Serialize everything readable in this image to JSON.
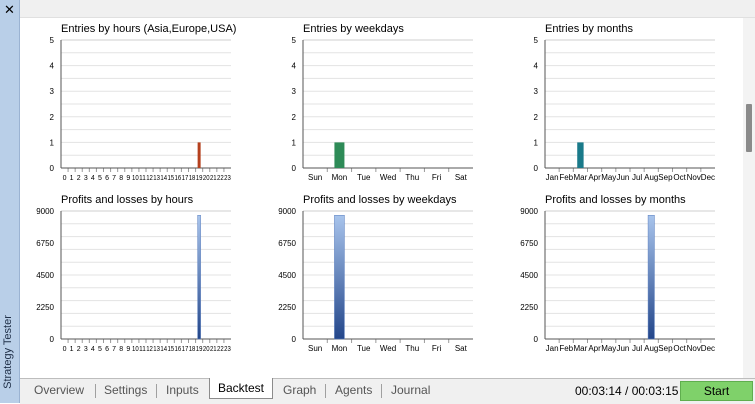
{
  "sidebar": {
    "title": "Strategy Tester",
    "close_icon": "✕"
  },
  "colors": {
    "hours_bar": "#b5401e",
    "weekdays_bar": "#2e8b57",
    "months_bar": "#1a7a8a",
    "profit_bar_top": "#a8c4ec",
    "profit_bar_bottom": "#23468a",
    "start_button": "#7fd16a"
  },
  "tabs": [
    {
      "label": "Overview",
      "active": false
    },
    {
      "label": "Settings",
      "active": false
    },
    {
      "label": "Inputs",
      "active": false
    },
    {
      "label": "Backtest",
      "active": true
    },
    {
      "label": "Graph",
      "active": false
    },
    {
      "label": "Agents",
      "active": false
    },
    {
      "label": "Journal",
      "active": false
    }
  ],
  "timer": "00:03:14 / 00:03:15",
  "start_label": "Start",
  "chart_data": [
    {
      "type": "bar",
      "title": "Entries by hours (Asia,Europe,USA)",
      "ylim": [
        0,
        5
      ],
      "yticks": [
        "0",
        "1",
        "2",
        "3",
        "4",
        "5"
      ],
      "categories": [
        "0",
        "1",
        "2",
        "3",
        "4",
        "5",
        "6",
        "7",
        "8",
        "9",
        "10",
        "11",
        "12",
        "13",
        "14",
        "15",
        "16",
        "17",
        "18",
        "19",
        "20",
        "21",
        "22",
        "23"
      ],
      "values": [
        0,
        0,
        0,
        0,
        0,
        0,
        0,
        0,
        0,
        0,
        0,
        0,
        0,
        0,
        0,
        0,
        0,
        0,
        0,
        1,
        0,
        0,
        0,
        0
      ],
      "color": "#b5401e"
    },
    {
      "type": "bar",
      "title": "Entries by weekdays",
      "ylim": [
        0,
        5
      ],
      "yticks": [
        "0",
        "1",
        "2",
        "3",
        "4",
        "5"
      ],
      "categories": [
        "Sun",
        "Mon",
        "Tue",
        "Wed",
        "Thu",
        "Fri",
        "Sat"
      ],
      "values": [
        0,
        1,
        0,
        0,
        0,
        0,
        0
      ],
      "color": "#2e8b57"
    },
    {
      "type": "bar",
      "title": "Entries by months",
      "ylim": [
        0,
        5
      ],
      "yticks": [
        "0",
        "1",
        "2",
        "3",
        "4",
        "5"
      ],
      "categories": [
        "Jan",
        "Feb",
        "Mar",
        "Apr",
        "May",
        "Jun",
        "Jul",
        "Aug",
        "Sep",
        "Oct",
        "Nov",
        "Dec"
      ],
      "values": [
        0,
        0,
        1,
        0,
        0,
        0,
        0,
        0,
        0,
        0,
        0,
        0
      ],
      "color": "#1a7a8a"
    },
    {
      "type": "bar",
      "title": "Profits and losses by hours",
      "ylim": [
        0,
        9000
      ],
      "yticks": [
        "0",
        "2250",
        "4500",
        "6750",
        "9000"
      ],
      "categories": [
        "0",
        "1",
        "2",
        "3",
        "4",
        "5",
        "6",
        "7",
        "8",
        "9",
        "10",
        "11",
        "12",
        "13",
        "14",
        "15",
        "16",
        "17",
        "18",
        "19",
        "20",
        "21",
        "22",
        "23"
      ],
      "values": [
        0,
        0,
        0,
        0,
        0,
        0,
        0,
        0,
        0,
        0,
        0,
        0,
        0,
        0,
        0,
        0,
        0,
        0,
        0,
        8700,
        0,
        0,
        0,
        0
      ],
      "color": "gradient"
    },
    {
      "type": "bar",
      "title": "Profits and losses by weekdays",
      "ylim": [
        0,
        9000
      ],
      "yticks": [
        "0",
        "2250",
        "4500",
        "6750",
        "9000"
      ],
      "categories": [
        "Sun",
        "Mon",
        "Tue",
        "Wed",
        "Thu",
        "Fri",
        "Sat"
      ],
      "values": [
        0,
        8700,
        0,
        0,
        0,
        0,
        0
      ],
      "color": "gradient"
    },
    {
      "type": "bar",
      "title": "Profits and losses by months",
      "ylim": [
        0,
        9000
      ],
      "yticks": [
        "0",
        "2250",
        "4500",
        "6750",
        "9000"
      ],
      "categories": [
        "Jan",
        "Feb",
        "Mar",
        "Apr",
        "May",
        "Jun",
        "Jul",
        "Aug",
        "Sep",
        "Oct",
        "Nov",
        "Dec"
      ],
      "values": [
        0,
        0,
        0,
        0,
        0,
        0,
        0,
        8700,
        0,
        0,
        0,
        0
      ],
      "color": "gradient"
    }
  ]
}
